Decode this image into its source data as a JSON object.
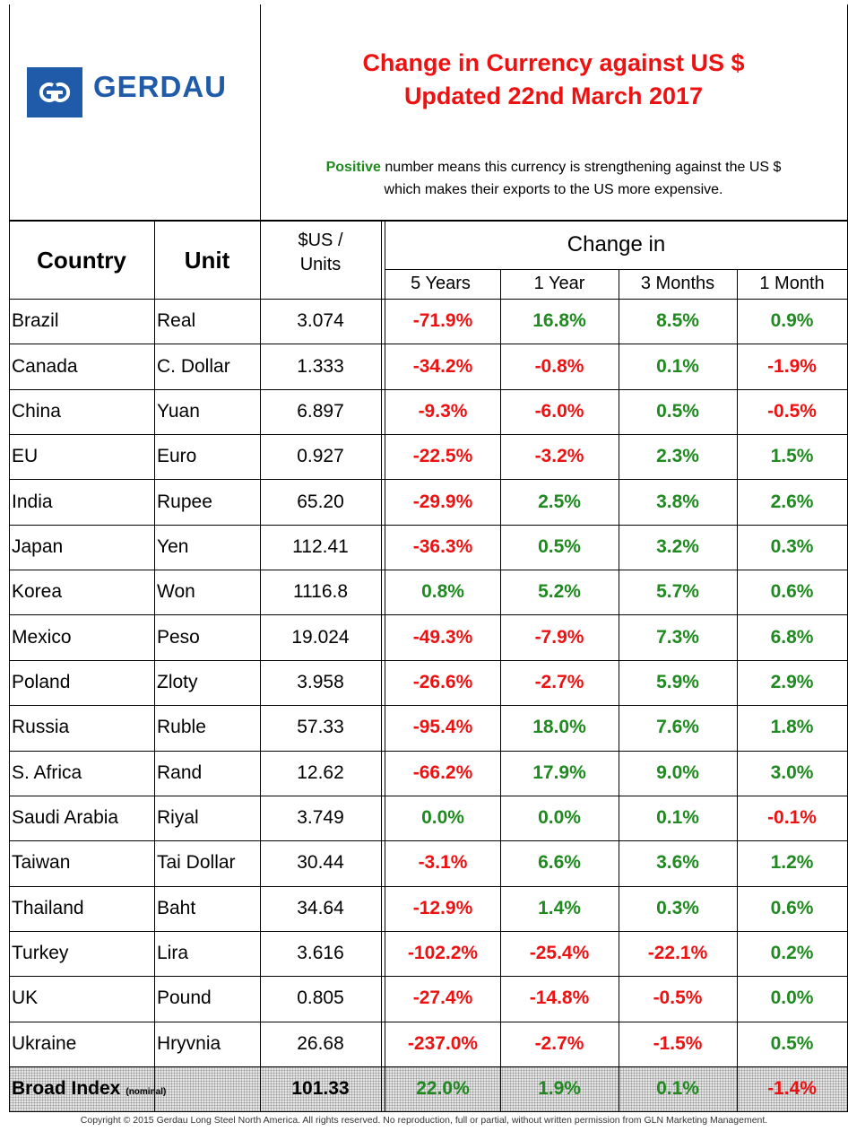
{
  "header": {
    "logo_text": "GERDAU",
    "title_lines": [
      "Change in Currency against US $",
      "Updated 22nd March 2017"
    ],
    "note_highlight": "Positive",
    "note_line1": " number means this currency is strengthening against the US $",
    "note_line2": "which makes their exports to the US more expensive."
  },
  "table": {
    "columns": {
      "country": "Country",
      "unit": "Unit",
      "price": [
        "$US /",
        "Units"
      ],
      "change_group": "Change in",
      "periods": [
        "5 Years",
        "1 Year",
        "3 Months",
        "1 Month"
      ]
    },
    "rows": [
      [
        "Brazil",
        "Real",
        "3.074",
        "-71.9%",
        "16.8%",
        "8.5%",
        "0.9%"
      ],
      [
        "Canada",
        "C. Dollar",
        "1.333",
        "-34.2%",
        "-0.8%",
        "0.1%",
        "-1.9%"
      ],
      [
        "China",
        "Yuan",
        "6.897",
        "-9.3%",
        "-6.0%",
        "0.5%",
        "-0.5%"
      ],
      [
        "EU",
        "Euro",
        "0.927",
        "-22.5%",
        "-3.2%",
        "2.3%",
        "1.5%"
      ],
      [
        "India",
        "Rupee",
        "65.20",
        "-29.9%",
        "2.5%",
        "3.8%",
        "2.6%"
      ],
      [
        "Japan",
        "Yen",
        "112.41",
        "-36.3%",
        "0.5%",
        "3.2%",
        "0.3%"
      ],
      [
        "Korea",
        "Won",
        "1116.8",
        "0.8%",
        "5.2%",
        "5.7%",
        "0.6%"
      ],
      [
        "Mexico",
        "Peso",
        "19.024",
        "-49.3%",
        "-7.9%",
        "7.3%",
        "6.8%"
      ],
      [
        "Poland",
        "Zloty",
        "3.958",
        "-26.6%",
        "-2.7%",
        "5.9%",
        "2.9%"
      ],
      [
        "Russia",
        "Ruble",
        "57.33",
        "-95.4%",
        "18.0%",
        "7.6%",
        "1.8%"
      ],
      [
        "S. Africa",
        "Rand",
        "12.62",
        "-66.2%",
        "17.9%",
        "9.0%",
        "3.0%"
      ],
      [
        "Saudi Arabia",
        "Riyal",
        "3.749",
        "0.0%",
        "0.0%",
        "0.1%",
        "-0.1%"
      ],
      [
        "Taiwan",
        "Tai Dollar",
        "30.44",
        "-3.1%",
        "6.6%",
        "3.6%",
        "1.2%"
      ],
      [
        "Thailand",
        "Baht",
        "34.64",
        "-12.9%",
        "1.4%",
        "0.3%",
        "0.6%"
      ],
      [
        "Turkey",
        "Lira",
        "3.616",
        "-102.2%",
        "-25.4%",
        "-22.1%",
        "0.2%"
      ],
      [
        "UK",
        "Pound",
        "0.805",
        "-27.4%",
        "-14.8%",
        "-0.5%",
        "0.0%"
      ],
      [
        "Ukraine",
        "Hryvnia",
        "26.68",
        "-237.0%",
        "-2.7%",
        "-1.5%",
        "0.5%"
      ]
    ],
    "broad_index": {
      "label": "Broad Index",
      "qualifier": "(nominal)",
      "price": "101.33",
      "changes": [
        "22.0%",
        "1.9%",
        "0.1%",
        "-1.4%"
      ]
    }
  },
  "footer": {
    "copyright": "Copyright © 2015 Gerdau Long Steel North America.  All rights reserved.  No reproduction, full or partial, without written permission from GLN Marketing Management."
  }
}
